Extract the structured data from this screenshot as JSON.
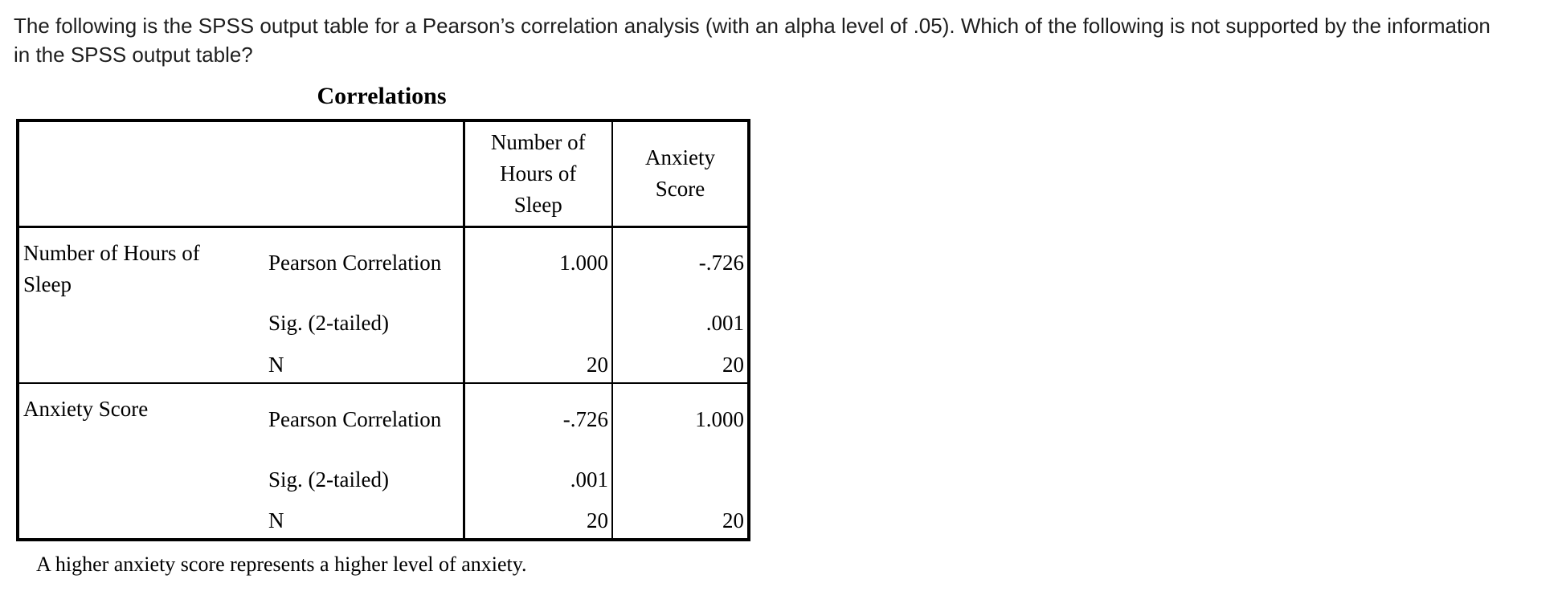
{
  "question": {
    "line1": "The following is the SPSS output table for a Pearson’s correlation analysis (with an alpha level of .05). Which of the following is not supported by the information",
    "line2": "in the SPSS output table?"
  },
  "table": {
    "title": "Correlations",
    "column_headers": [
      "Number of Hours of Sleep",
      "Anxiety Score"
    ],
    "row_groups": [
      {
        "label": "Number of Hours of Sleep",
        "rows": [
          {
            "stat": "Pearson Correlation",
            "values": [
              "1.000",
              "-.726"
            ]
          },
          {
            "stat": "Sig. (2-tailed)",
            "values": [
              "",
              ".001"
            ]
          },
          {
            "stat": "N",
            "values": [
              "20",
              "20"
            ]
          }
        ]
      },
      {
        "label": "Anxiety Score",
        "rows": [
          {
            "stat": "Pearson Correlation",
            "values": [
              "-.726",
              "1.000"
            ]
          },
          {
            "stat": "Sig. (2-tailed)",
            "values": [
              ".001",
              ""
            ]
          },
          {
            "stat": "N",
            "values": [
              "20",
              "20"
            ]
          }
        ]
      }
    ],
    "footnote": "A higher anxiety score represents a higher level of anxiety."
  }
}
